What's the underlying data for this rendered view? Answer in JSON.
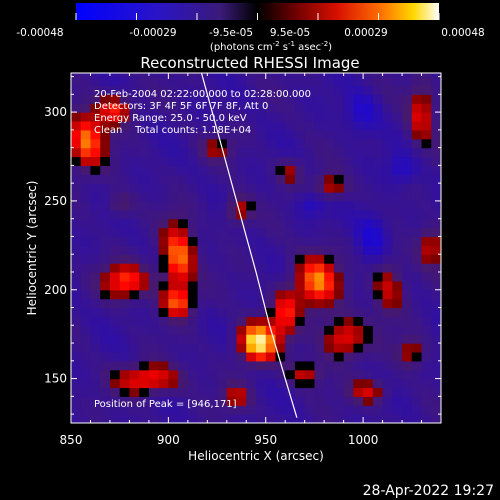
{
  "title": "Reconstructed RHESSI Image",
  "colorbar": {
    "ticks": [
      "-0.00048",
      "-0.00029",
      "-9.5e-05",
      "9.5e-05",
      "0.00029",
      "0.00048"
    ],
    "label_parts": [
      "(photons cm",
      "-2",
      " s",
      "-1",
      " asec",
      "-2",
      ")"
    ]
  },
  "info_lines": [
    "20-Feb-2004 02:22:00.000 to 02:28:00.000",
    "Detectors: 3F 4F 5F 6F 7F 8F, Att 0",
    "Energy Range: 25.0 - 50.0 keV",
    "Clean    Total counts: 1.18E+04"
  ],
  "peak_text": "Position of Peak = [946,171]",
  "footer_date": "28-Apr-2022 19:27",
  "chart_data": {
    "type": "heatmap",
    "title": "Reconstructed RHESSI Image",
    "xlabel": "Heliocentric X (arcsec)",
    "ylabel": "Heliocentric Y (arcsec)",
    "xlim": [
      850,
      1040
    ],
    "ylim": [
      125,
      322
    ],
    "xticks": [
      850,
      900,
      950,
      1000
    ],
    "yticks": [
      150,
      200,
      250,
      300
    ],
    "colorbar_range": [
      -0.00048,
      0.00048
    ],
    "peak": [
      946,
      171
    ],
    "limb_curve": [
      [
        917,
        322
      ],
      [
        925,
        290
      ],
      [
        935,
        250
      ],
      [
        945,
        210
      ],
      [
        952,
        180
      ],
      [
        960,
        150
      ],
      [
        966,
        128
      ]
    ],
    "blobs": [
      {
        "x": 946,
        "y": 171,
        "amp": 1.0,
        "sx": 7,
        "sy": 8
      },
      {
        "x": 905,
        "y": 218,
        "amp": 0.75,
        "sx": 6,
        "sy": 14
      },
      {
        "x": 858,
        "y": 285,
        "amp": 0.7,
        "sx": 7,
        "sy": 12
      },
      {
        "x": 873,
        "y": 302,
        "amp": 0.55,
        "sx": 6,
        "sy": 6
      },
      {
        "x": 878,
        "y": 205,
        "amp": 0.6,
        "sx": 9,
        "sy": 7
      },
      {
        "x": 890,
        "y": 150,
        "amp": 0.6,
        "sx": 12,
        "sy": 6
      },
      {
        "x": 905,
        "y": 193,
        "amp": 0.55,
        "sx": 6,
        "sy": 6
      },
      {
        "x": 936,
        "y": 245,
        "amp": 0.45,
        "sx": 5,
        "sy": 6
      },
      {
        "x": 960,
        "y": 188,
        "amp": 0.5,
        "sx": 5,
        "sy": 10
      },
      {
        "x": 976,
        "y": 205,
        "amp": 0.7,
        "sx": 8,
        "sy": 11
      },
      {
        "x": 990,
        "y": 173,
        "amp": 0.6,
        "sx": 8,
        "sy": 8
      },
      {
        "x": 970,
        "y": 153,
        "amp": 0.45,
        "sx": 6,
        "sy": 5
      },
      {
        "x": 1003,
        "y": 143,
        "amp": 0.45,
        "sx": 7,
        "sy": 5
      },
      {
        "x": 1013,
        "y": 203,
        "amp": 0.45,
        "sx": 6,
        "sy": 12
      },
      {
        "x": 1030,
        "y": 300,
        "amp": 0.5,
        "sx": 5,
        "sy": 12
      },
      {
        "x": 1035,
        "y": 225,
        "amp": 0.45,
        "sx": 5,
        "sy": 8
      },
      {
        "x": 1025,
        "y": 165,
        "amp": 0.4,
        "sx": 5,
        "sy": 6
      },
      {
        "x": 983,
        "y": 258,
        "amp": 0.45,
        "sx": 6,
        "sy": 5
      },
      {
        "x": 962,
        "y": 267,
        "amp": 0.35,
        "sx": 5,
        "sy": 5
      },
      {
        "x": 875,
        "y": 248,
        "amp": 0.3,
        "sx": 5,
        "sy": 5
      },
      {
        "x": 925,
        "y": 280,
        "amp": 0.3,
        "sx": 6,
        "sy": 5
      },
      {
        "x": 935,
        "y": 140,
        "amp": 0.4,
        "sx": 5,
        "sy": 5
      },
      {
        "x": 1000,
        "y": 300,
        "amp": -0.35,
        "sx": 6,
        "sy": 8
      },
      {
        "x": 1005,
        "y": 230,
        "amp": -0.4,
        "sx": 6,
        "sy": 10
      },
      {
        "x": 973,
        "y": 248,
        "amp": -0.3,
        "sx": 5,
        "sy": 5
      },
      {
        "x": 1020,
        "y": 268,
        "amp": -0.3,
        "sx": 5,
        "sy": 6
      }
    ]
  },
  "colors": {
    "background": "#000000",
    "limb_line": "#ffffff",
    "colorbar_stops": [
      "#0000ff",
      "#000000",
      "#ff0000",
      "#ffff00",
      "#ffffff"
    ]
  }
}
